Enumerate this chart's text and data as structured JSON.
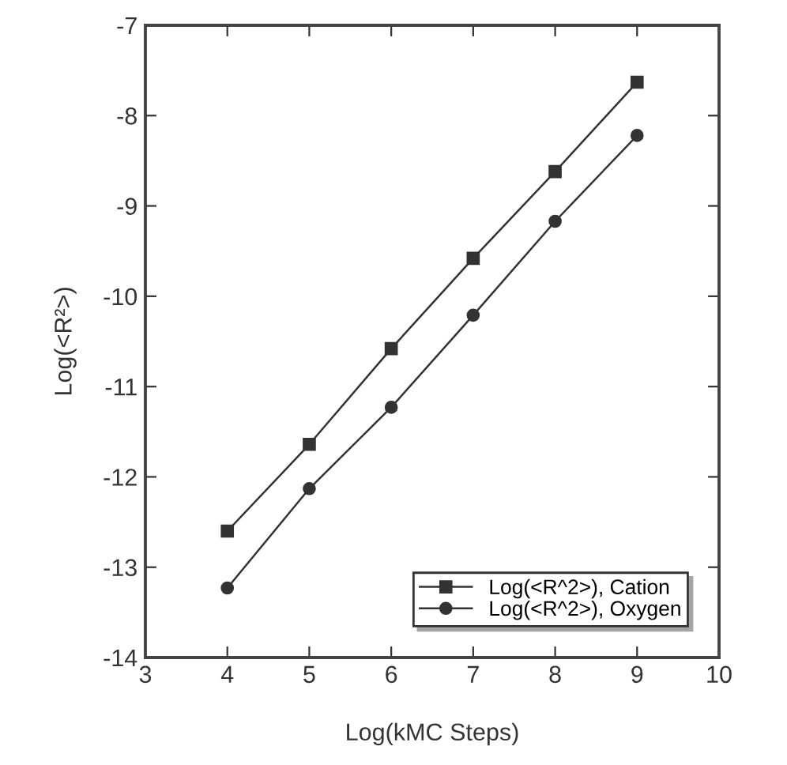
{
  "chart_data": {
    "type": "line",
    "xlabel": "Log(kMC Steps)",
    "ylabel": "Log(<R²>)",
    "x": [
      4,
      5,
      6,
      7,
      8,
      9
    ],
    "series": [
      {
        "name": "Log(<R^2>), Cation",
        "color": "#333333",
        "marker": "square",
        "values": [
          -12.6,
          -11.64,
          -10.58,
          -9.58,
          -8.62,
          -7.63
        ]
      },
      {
        "name": "Log(<R^2>), Oxygen",
        "color": "#333333",
        "marker": "circle",
        "values": [
          -13.23,
          -12.13,
          -11.23,
          -10.21,
          -9.17,
          -8.22
        ]
      }
    ],
    "xlim": [
      3,
      10
    ],
    "ylim": [
      -14,
      -7
    ],
    "xticks": [
      3,
      4,
      5,
      6,
      7,
      8,
      9,
      10
    ],
    "yticks": [
      -14,
      -13,
      -12,
      -11,
      -10,
      -9,
      -8,
      -7
    ],
    "grid": false,
    "legend": "bottom right",
    "line_style": "solid"
  }
}
